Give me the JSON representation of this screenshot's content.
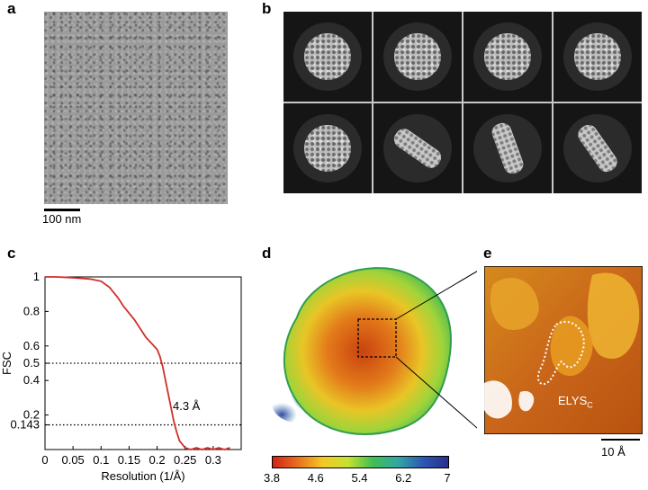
{
  "panels": {
    "a": {
      "letter": "a",
      "scale_label": "100 nm"
    },
    "b": {
      "letter": "b",
      "classes": [
        {
          "kind": "top-view",
          "rotation": 0
        },
        {
          "kind": "top-view",
          "rotation": 0
        },
        {
          "kind": "top-view",
          "rotation": 0
        },
        {
          "kind": "top-view",
          "rotation": 0
        },
        {
          "kind": "top-view",
          "rotation": 0
        },
        {
          "kind": "side-view",
          "rotation": 35
        },
        {
          "kind": "side-view",
          "rotation": 70
        },
        {
          "kind": "side-view",
          "rotation": 55
        }
      ]
    },
    "c": {
      "letter": "c",
      "annotation": "4.3 Å"
    },
    "d": {
      "letter": "d",
      "colorbar_ticks": [
        "3.8",
        "4.6",
        "5.4",
        "6.2",
        "7"
      ],
      "colorbar_stops": [
        "#d2221a",
        "#e8701d",
        "#f5c825",
        "#c6e22e",
        "#3fbf54",
        "#33a6a6",
        "#2d56b3",
        "#2a2f8c"
      ]
    },
    "e": {
      "letter": "e",
      "label_main": "ELYS",
      "label_sub": "C",
      "scale_label": "10 Å"
    }
  },
  "chart_data": {
    "type": "line",
    "title": "",
    "xlabel": "Resolution (1/Å)",
    "ylabel": "FSC",
    "xlim": [
      0,
      0.35
    ],
    "ylim": [
      0,
      1
    ],
    "x_ticks": [
      "0",
      "0.05",
      "0.1",
      "0.15",
      "0.2",
      "0.25",
      "0.3"
    ],
    "x_tick_values": [
      0,
      0.05,
      0.1,
      0.15,
      0.2,
      0.25,
      0.3
    ],
    "y_ticks": [
      "0.143",
      "0.2",
      "0.4",
      "0.5",
      "0.6",
      "0.8",
      "1"
    ],
    "y_tick_values": [
      0.143,
      0.2,
      0.4,
      0.5,
      0.6,
      0.8,
      1
    ],
    "reference_lines": [
      0.5,
      0.143
    ],
    "grid": false,
    "series": [
      {
        "color": "#d02e28",
        "x": [
          0,
          0.02,
          0.04,
          0.06,
          0.08,
          0.1,
          0.115,
          0.13,
          0.14,
          0.15,
          0.16,
          0.17,
          0.18,
          0.19,
          0.2,
          0.205,
          0.21,
          0.215,
          0.22,
          0.225,
          0.23,
          0.235,
          0.24,
          0.245,
          0.25,
          0.26,
          0.27,
          0.28,
          0.29,
          0.3,
          0.31,
          0.32,
          0.33
        ],
        "y": [
          1.0,
          1.0,
          0.997,
          0.993,
          0.988,
          0.975,
          0.94,
          0.88,
          0.83,
          0.79,
          0.75,
          0.7,
          0.65,
          0.615,
          0.58,
          0.54,
          0.48,
          0.4,
          0.32,
          0.24,
          0.16,
          0.1,
          0.05,
          0.03,
          0.01,
          0.0,
          0.01,
          0.0,
          0.01,
          0.0,
          0.01,
          0.0,
          0.01
        ]
      }
    ]
  }
}
